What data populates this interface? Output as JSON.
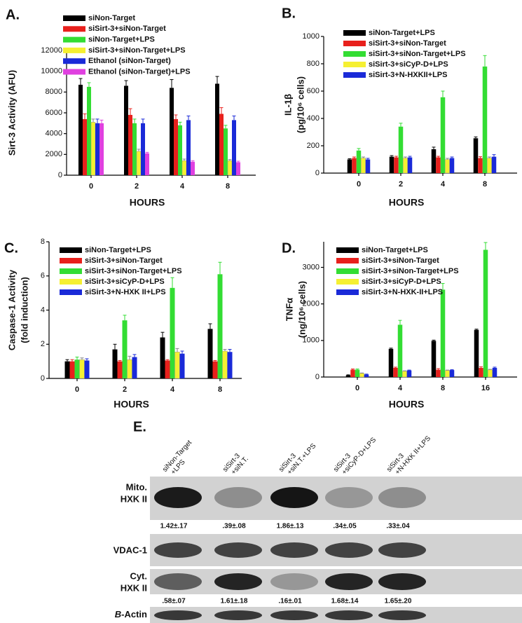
{
  "chart_data": [
    {
      "type": "bar",
      "panel": "A.",
      "ylabel": [
        "Sirt-3 Activity (AFU)"
      ],
      "xlabel": "HOURS",
      "categories": [
        "0",
        "2",
        "4",
        "8"
      ],
      "ylim": [
        0,
        12000
      ],
      "yticks": [
        0,
        2000,
        4000,
        6000,
        8000,
        10000,
        12000
      ],
      "series": [
        {
          "name": "siNon-Target",
          "color": "#000000",
          "values": [
            8700,
            8600,
            8400,
            8800
          ],
          "errors": [
            600,
            500,
            800,
            700
          ]
        },
        {
          "name": "siSirt-3+siNon-Target",
          "color": "#e8201c",
          "values": [
            5400,
            5800,
            5400,
            5900
          ],
          "errors": [
            500,
            600,
            400,
            600
          ]
        },
        {
          "name": "siNon-Target+LPS",
          "color": "#33dd33",
          "values": [
            8500,
            5000,
            4800,
            4500
          ],
          "errors": [
            400,
            400,
            300,
            300
          ]
        },
        {
          "name": "siSirt-3+siNon-Target+LPS",
          "color": "#f5f032",
          "values": [
            5100,
            2300,
            1400,
            1400
          ],
          "errors": [
            300,
            200,
            150,
            100
          ]
        },
        {
          "name": "Ethanol (siNon-Target)",
          "color": "#1a2ad8",
          "values": [
            5000,
            5000,
            5300,
            5300
          ],
          "errors": [
            400,
            400,
            400,
            400
          ]
        },
        {
          "name": "Ethanol (siNon-Target)+LPS",
          "color": "#e040e0",
          "values": [
            5000,
            2100,
            1300,
            1250
          ],
          "errors": [
            300,
            100,
            100,
            100
          ]
        }
      ]
    },
    {
      "type": "bar",
      "panel": "B.",
      "ylabel": [
        "IL-1β",
        "(pg/10⁶ cells)"
      ],
      "xlabel": "HOURS",
      "categories": [
        "0",
        "2",
        "4",
        "8"
      ],
      "ylim": [
        0,
        1000
      ],
      "yticks": [
        0,
        200,
        400,
        600,
        800,
        1000
      ],
      "series": [
        {
          "name": "siNon-Target+LPS",
          "color": "#000000",
          "values": [
            100,
            120,
            175,
            255
          ],
          "errors": [
            5,
            8,
            15,
            10
          ]
        },
        {
          "name": "siSirt-3+siNon-Target",
          "color": "#e8201c",
          "values": [
            110,
            115,
            115,
            110
          ],
          "errors": [
            8,
            8,
            8,
            10
          ]
        },
        {
          "name": "siSirt-3+siNon-Target+LPS",
          "color": "#33dd33",
          "values": [
            165,
            340,
            555,
            780
          ],
          "errors": [
            15,
            25,
            45,
            80
          ]
        },
        {
          "name": "siSirt-3+siCyP-D+LPS",
          "color": "#f5f032",
          "values": [
            110,
            110,
            100,
            110
          ],
          "errors": [
            8,
            8,
            8,
            8
          ]
        },
        {
          "name": "siSirt-3+N-HXKII+LPS",
          "color": "#1a2ad8",
          "values": [
            100,
            115,
            110,
            120
          ],
          "errors": [
            8,
            8,
            8,
            15
          ]
        }
      ]
    },
    {
      "type": "bar",
      "panel": "C.",
      "ylabel": [
        "Caspase-1 Activity",
        "(fold induction)"
      ],
      "xlabel": "HOURS",
      "categories": [
        "0",
        "2",
        "4",
        "8"
      ],
      "ylim": [
        0,
        8
      ],
      "yticks": [
        0,
        2,
        4,
        6,
        8
      ],
      "series": [
        {
          "name": "siNon-Target+LPS",
          "color": "#000000",
          "values": [
            1.0,
            1.7,
            2.4,
            2.9
          ],
          "errors": [
            0.1,
            0.3,
            0.3,
            0.3
          ]
        },
        {
          "name": "siSirt-3+siNon-Target",
          "color": "#e8201c",
          "values": [
            1.0,
            1.0,
            1.05,
            1.0
          ],
          "errors": [
            0.1,
            0.05,
            0.05,
            0.05
          ]
        },
        {
          "name": "siSirt-3+siNon-Target+LPS",
          "color": "#33dd33",
          "values": [
            1.1,
            3.4,
            5.3,
            6.1
          ],
          "errors": [
            0.15,
            0.3,
            0.6,
            0.7
          ]
        },
        {
          "name": "siSirt-3+siCyP-D+LPS",
          "color": "#f5f032",
          "values": [
            1.1,
            1.1,
            1.55,
            1.6
          ],
          "errors": [
            0.1,
            0.2,
            0.2,
            0.1
          ]
        },
        {
          "name": "siSirt-3+N-HXK II+LPS",
          "color": "#1a2ad8",
          "values": [
            1.05,
            1.25,
            1.45,
            1.55
          ],
          "errors": [
            0.1,
            0.15,
            0.15,
            0.15
          ]
        }
      ]
    },
    {
      "type": "bar",
      "panel": "D.",
      "ylabel": [
        "TNFα",
        "(ng/10⁶ cells)"
      ],
      "xlabel": "HOURS",
      "categories": [
        "0",
        "4",
        "8",
        "16"
      ],
      "ylim": [
        0,
        3700
      ],
      "yticks": [
        0,
        1000,
        2000,
        3000
      ],
      "series": [
        {
          "name": "siNon-Target+LPS",
          "color": "#000000",
          "values": [
            50,
            770,
            990,
            1290
          ],
          "errors": [
            10,
            20,
            20,
            20
          ]
        },
        {
          "name": "siSirt-3+siNon-Target",
          "color": "#e8201c",
          "values": [
            200,
            250,
            200,
            250
          ],
          "errors": [
            20,
            20,
            30,
            30
          ]
        },
        {
          "name": "siSirt-3+siNon-Target+LPS",
          "color": "#33dd33",
          "values": [
            200,
            1430,
            2390,
            3480
          ],
          "errors": [
            20,
            120,
            170,
            200
          ]
        },
        {
          "name": "siSirt-3+siCyP-D+LPS",
          "color": "#f5f032",
          "values": [
            100,
            160,
            180,
            200
          ],
          "errors": [
            10,
            10,
            10,
            10
          ]
        },
        {
          "name": "siSirt-3+N-HXK-II+LPS",
          "color": "#1a2ad8",
          "values": [
            70,
            180,
            190,
            250
          ],
          "errors": [
            10,
            10,
            10,
            20
          ]
        }
      ]
    }
  ],
  "blot": {
    "panel": "E.",
    "lanes": [
      [
        "siNon-Target",
        "+LPS"
      ],
      [
        "siSirt-3",
        "+siN.T."
      ],
      [
        "siSirt-3",
        "+siN.T.+LPS"
      ],
      [
        "siSirt-3",
        "+siCyP-D+LPS"
      ],
      [
        "siSirt-3",
        "+N-HXK II+LPS"
      ]
    ],
    "rows": [
      {
        "label": [
          "Mito.",
          "HXK II"
        ],
        "quant": [
          "1.42±.17",
          ".39±.08",
          "1.86±.13",
          ".34±.05",
          ".33±.04"
        ]
      },
      {
        "label": [
          "VDAC-1"
        ]
      },
      {
        "label": [
          "Cyt.",
          "HXK II"
        ],
        "quant": [
          ".58±.07",
          "1.61±.18",
          ".16±.01",
          "1.68±.14",
          "1.65±.20"
        ]
      },
      {
        "label_italic": "B",
        "label": [
          "-Actin"
        ]
      }
    ]
  }
}
